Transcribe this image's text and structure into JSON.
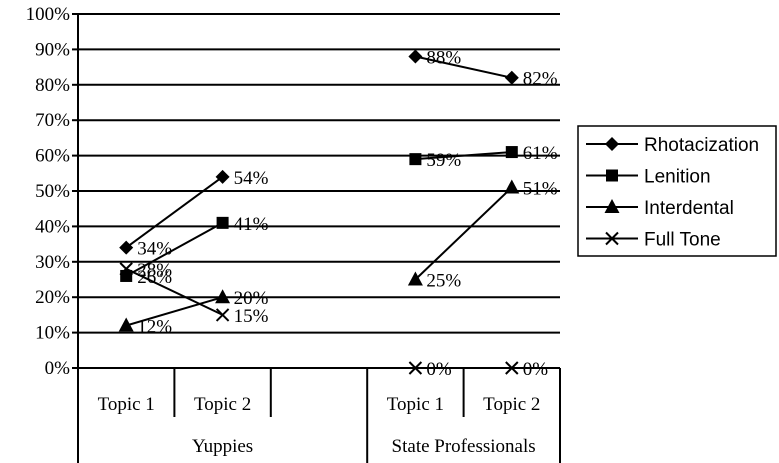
{
  "chart_data": {
    "type": "line",
    "ylim": [
      0,
      100
    ],
    "yticks": [
      0,
      10,
      20,
      30,
      40,
      50,
      60,
      70,
      80,
      90,
      100
    ],
    "ytick_format": "{v}%",
    "grid": true,
    "legend_position": "right",
    "categories": [
      {
        "group": "Yuppies",
        "label": "Topic 1"
      },
      {
        "group": "Yuppies",
        "label": "Topic 2"
      },
      {
        "group": "Yuppies",
        "label": ""
      },
      {
        "group": "State Professionals",
        "label": "Topic 1"
      },
      {
        "group": "State Professionals",
        "label": "Topic 2"
      }
    ],
    "groups": [
      "Yuppies",
      "State Professionals"
    ],
    "series": [
      {
        "name": "Rhotacization",
        "marker": "diamond",
        "values": [
          34,
          54,
          null,
          88,
          82
        ],
        "labels": [
          "34%",
          "54%",
          null,
          "88%",
          "82%"
        ]
      },
      {
        "name": "Lenition",
        "marker": "square",
        "values": [
          26,
          41,
          null,
          59,
          61
        ],
        "labels": [
          "26%",
          "41%",
          null,
          "59%",
          "61%"
        ]
      },
      {
        "name": "Interdental",
        "marker": "triangle",
        "values": [
          12,
          20,
          null,
          25,
          51
        ],
        "labels": [
          "12%",
          "20%",
          null,
          "25%",
          "51%"
        ]
      },
      {
        "name": "Full Tone",
        "marker": "x",
        "values": [
          28,
          15,
          null,
          0,
          0
        ],
        "labels": [
          "28%",
          "15%",
          null,
          "0%",
          "0%"
        ]
      }
    ]
  }
}
